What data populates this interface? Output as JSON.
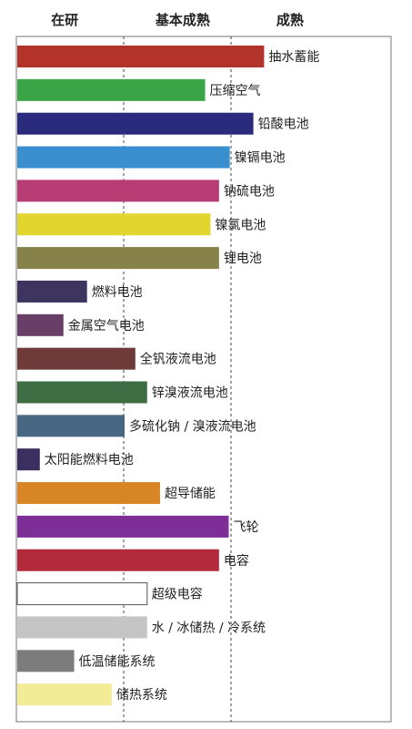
{
  "chart_data": {
    "type": "bar",
    "orientation": "horizontal",
    "stage_labels": [
      "在研",
      "基本成熟",
      "成熟"
    ],
    "stage_divisions": [
      1,
      2
    ],
    "xlim": [
      0,
      3
    ],
    "grid": false,
    "categories": [
      "抽水蓄能",
      "压缩空气",
      "铅酸电池",
      "镍镉电池",
      "钠硫电池",
      "镍氯电池",
      "锂电池",
      "燃料电池",
      "金属空气电池",
      "全钒液流电池",
      "锌溴液流电池",
      "多硫化钠 / 溴液流电池",
      "太阳能燃料电池",
      "超导储能",
      "飞轮",
      "电容",
      "超级电容",
      "水 / 冰储热 / 冷系统",
      "低温储能系统",
      "储热系统"
    ],
    "values": [
      2.3,
      1.75,
      2.2,
      1.98,
      1.88,
      1.8,
      1.88,
      0.65,
      0.43,
      1.1,
      1.21,
      1.0,
      0.21,
      1.33,
      1.97,
      1.88,
      1.21,
      1.21,
      0.53,
      0.88
    ],
    "colors": [
      "#b3332b",
      "#3aa547",
      "#2b2b7d",
      "#3a8fcf",
      "#b83c74",
      "#e2d52e",
      "#86824a",
      "#3d355f",
      "#6a3f67",
      "#6f3b3a",
      "#3e6c43",
      "#486783",
      "#3a2f5e",
      "#d88525",
      "#7d2f97",
      "#b42a3d",
      "#ffffff",
      "#c5c5c5",
      "#7c7c7c",
      "#f2ec97"
    ]
  }
}
